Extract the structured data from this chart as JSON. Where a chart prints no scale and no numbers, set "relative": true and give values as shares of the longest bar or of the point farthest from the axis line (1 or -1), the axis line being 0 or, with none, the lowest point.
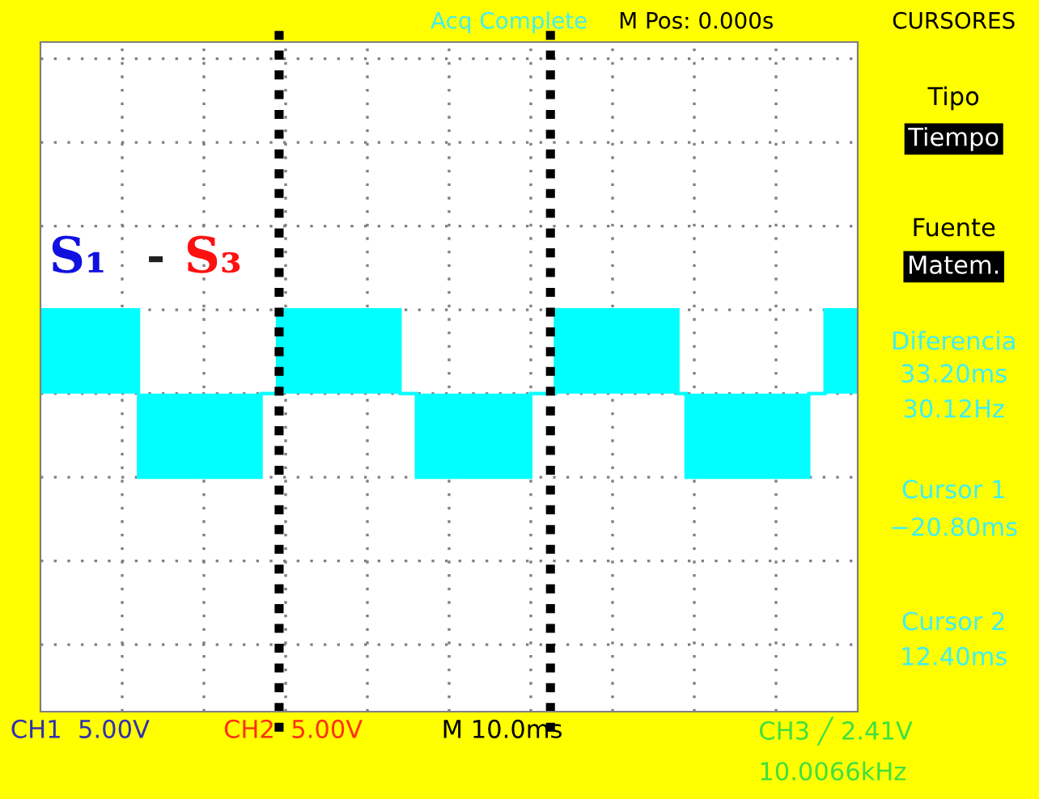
{
  "chart_data": {
    "type": "area",
    "relative": true,
    "categories": [
      null,
      null,
      null,
      null,
      null,
      null,
      null,
      null,
      null,
      null,
      null,
      null,
      null,
      null,
      null,
      null,
      null,
      null,
      null,
      null,
      null,
      null,
      null,
      null,
      null,
      null,
      null,
      null,
      null,
      null,
      null,
      null,
      null,
      null,
      null,
      null,
      null,
      null,
      null,
      null,
      null,
      null,
      null,
      null,
      null,
      null,
      null,
      null,
      null,
      null,
      null,
      null,
      null,
      null,
      null,
      null,
      null,
      null,
      null,
      null,
      null,
      null,
      null,
      null,
      null,
      null,
      null,
      null,
      null,
      null,
      null,
      null,
      null,
      null,
      null,
      null,
      null,
      null,
      null,
      null,
      null,
      null,
      null,
      null,
      null,
      null,
      null,
      null,
      null,
      null,
      null,
      null,
      null,
      null,
      null,
      null,
      null,
      null,
      null,
      null
    ],
    "series": [
      {
        "color": "#00ffff",
        "values": [
          1,
          1,
          1,
          1,
          1,
          1,
          1,
          1,
          1,
          1,
          1,
          1,
          -1,
          -1,
          -1,
          -1,
          -1,
          -1,
          -1,
          -1,
          -1,
          -1,
          -1,
          -1,
          -1,
          -1,
          -1,
          0,
          0,
          1,
          1,
          1,
          1,
          1,
          1,
          1,
          1,
          1,
          1,
          1,
          1,
          1,
          1,
          1,
          0,
          0,
          -1,
          -1,
          -1,
          -1,
          -1,
          -1,
          -1,
          -1,
          -1,
          -1,
          -1,
          -1,
          -1,
          -1,
          0,
          0,
          0,
          1,
          1,
          1,
          1,
          1,
          1,
          1,
          1,
          1,
          1,
          1,
          1,
          1,
          1,
          1,
          0,
          -1,
          -1,
          -1,
          -1,
          -1,
          -1,
          -1,
          -1,
          -1,
          -1,
          -1,
          -1,
          -1,
          -1,
          -1,
          0,
          0,
          1,
          1,
          1,
          1
        ]
      }
    ],
    "grid": true,
    "annotations": [
      "S₁",
      "-",
      "S₃",
      "Acq Complete",
      "M Pos: 0.000s",
      "CURSORES",
      "Tipo",
      "Tiempo",
      "Fuente",
      "Matem.",
      "Diferencia",
      "33.20ms",
      "30.12Hz",
      "Cursor 1",
      "−20.80ms",
      "Cursor 2",
      "12.40ms",
      "CH1  5.00V",
      "CH2  5.00V",
      "M 10.0ms",
      "CH3 ╱ 2.41V",
      "10.0066kHz"
    ]
  }
}
